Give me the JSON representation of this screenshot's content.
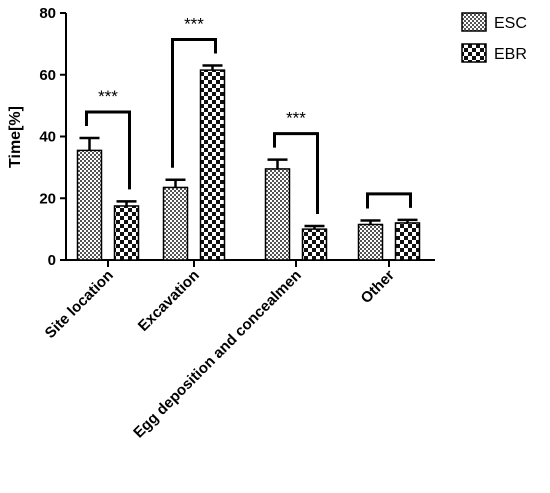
{
  "chart_data": {
    "type": "bar",
    "title": "",
    "ylabel": "Time[%]",
    "xlabel": "",
    "ylim": [
      0,
      80
    ],
    "yticks": [
      0,
      20,
      40,
      60,
      80
    ],
    "categories": [
      "Site location",
      "Excavation",
      "Egg deposition and concealmen",
      "Other"
    ],
    "series": [
      {
        "name": "ESC",
        "values": [
          35.5,
          23.5,
          29.5,
          11.5
        ],
        "errors": [
          4,
          2.5,
          3,
          1.3
        ],
        "pattern": "fine-checker"
      },
      {
        "name": "EBR",
        "values": [
          17.5,
          61.5,
          10.0,
          12.0
        ],
        "errors": [
          1.5,
          1.5,
          1.0,
          1.0
        ],
        "pattern": "coarse-checker"
      }
    ],
    "significance": [
      "***",
      "***",
      "***",
      ""
    ],
    "legend_position": "top-right",
    "grid": false
  }
}
